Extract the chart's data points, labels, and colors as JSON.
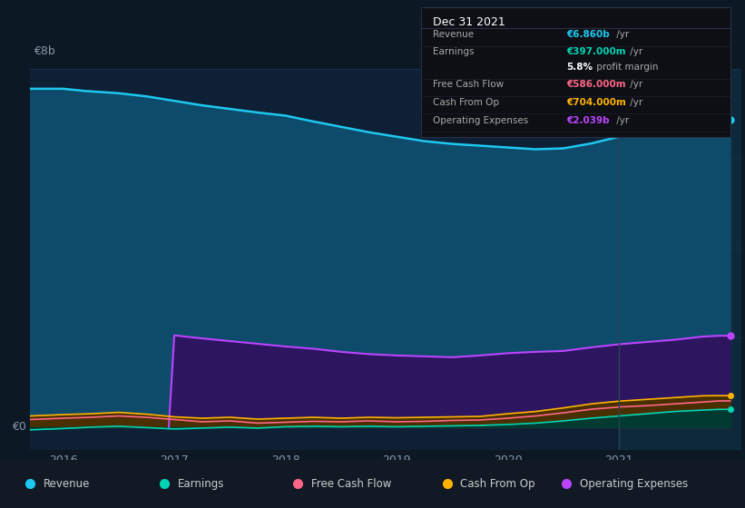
{
  "background_color": "#0c1824",
  "plot_bg_color": "#0d2035",
  "plot_bg_right": "#0e2a3a",
  "fig_width": 8.21,
  "fig_height": 5.6,
  "dpi": 100,
  "ylabel_top": "€8b",
  "ylabel_zero": "€0",
  "x_ticks": [
    2016,
    2017,
    2018,
    2019,
    2020,
    2021
  ],
  "ylim": [
    8.0,
    0.0
  ],
  "y_max": 8.0,
  "y_zero": 0.0,
  "xlim_min": 2015.7,
  "xlim_max": 2022.1,
  "vline_x": 2021.0,
  "revenue": {
    "label": "Revenue",
    "color": "#1ec8f0",
    "fill_color": "#0e4a6a",
    "data_x": [
      2015.7,
      2016.0,
      2016.2,
      2016.5,
      2016.75,
      2017.0,
      2017.25,
      2017.5,
      2017.75,
      2018.0,
      2018.25,
      2018.5,
      2018.75,
      2019.0,
      2019.25,
      2019.5,
      2019.75,
      2020.0,
      2020.25,
      2020.5,
      2020.75,
      2021.0,
      2021.1,
      2021.25,
      2021.5,
      2021.75,
      2021.9,
      2022.0
    ],
    "data_y": [
      7.55,
      7.55,
      7.5,
      7.45,
      7.38,
      7.28,
      7.18,
      7.1,
      7.02,
      6.95,
      6.82,
      6.7,
      6.58,
      6.48,
      6.38,
      6.32,
      6.28,
      6.24,
      6.2,
      6.22,
      6.33,
      6.48,
      6.55,
      6.62,
      6.72,
      6.8,
      6.86,
      6.86
    ]
  },
  "operating_expenses": {
    "label": "Operating Expenses",
    "color": "#bb44ff",
    "fill_color": "#2d1560",
    "data_x": [
      2016.95,
      2017.0,
      2017.1,
      2017.25,
      2017.5,
      2017.75,
      2018.0,
      2018.25,
      2018.5,
      2018.75,
      2019.0,
      2019.25,
      2019.5,
      2019.75,
      2020.0,
      2020.25,
      2020.5,
      2020.75,
      2021.0,
      2021.25,
      2021.5,
      2021.75,
      2021.9,
      2022.0
    ],
    "data_y": [
      0.0,
      2.05,
      2.02,
      1.98,
      1.92,
      1.86,
      1.8,
      1.75,
      1.68,
      1.63,
      1.6,
      1.58,
      1.56,
      1.6,
      1.65,
      1.68,
      1.7,
      1.78,
      1.85,
      1.9,
      1.95,
      2.02,
      2.039,
      2.039
    ]
  },
  "free_cash_flow": {
    "label": "Free Cash Flow",
    "color": "#ff6688",
    "fill_color": "#8b2040",
    "data_x": [
      2015.7,
      2016.0,
      2016.25,
      2016.5,
      2016.75,
      2017.0,
      2017.25,
      2017.5,
      2017.75,
      2018.0,
      2018.25,
      2018.5,
      2018.75,
      2019.0,
      2019.25,
      2019.5,
      2019.75,
      2020.0,
      2020.25,
      2020.5,
      2020.75,
      2021.0,
      2021.25,
      2021.5,
      2021.75,
      2021.9,
      2022.0
    ],
    "data_y": [
      0.17,
      0.2,
      0.22,
      0.25,
      0.22,
      0.17,
      0.12,
      0.14,
      0.09,
      0.11,
      0.13,
      0.12,
      0.14,
      0.12,
      0.13,
      0.15,
      0.16,
      0.2,
      0.25,
      0.32,
      0.4,
      0.45,
      0.48,
      0.52,
      0.56,
      0.586,
      0.586
    ]
  },
  "cash_from_op": {
    "label": "Cash From Op",
    "color": "#ffb300",
    "fill_color": "#4a3000",
    "data_x": [
      2015.7,
      2016.0,
      2016.25,
      2016.5,
      2016.75,
      2017.0,
      2017.25,
      2017.5,
      2017.75,
      2018.0,
      2018.25,
      2018.5,
      2018.75,
      2019.0,
      2019.25,
      2019.5,
      2019.75,
      2020.0,
      2020.25,
      2020.5,
      2020.75,
      2021.0,
      2021.25,
      2021.5,
      2021.75,
      2021.9,
      2022.0
    ],
    "data_y": [
      0.25,
      0.28,
      0.3,
      0.33,
      0.29,
      0.23,
      0.2,
      0.22,
      0.18,
      0.2,
      0.22,
      0.2,
      0.22,
      0.21,
      0.22,
      0.23,
      0.24,
      0.3,
      0.35,
      0.43,
      0.52,
      0.58,
      0.62,
      0.66,
      0.7,
      0.704,
      0.704
    ]
  },
  "earnings": {
    "label": "Earnings",
    "color": "#00d4b4",
    "fill_color": "#003a30",
    "data_x": [
      2015.7,
      2016.0,
      2016.25,
      2016.5,
      2016.75,
      2017.0,
      2017.25,
      2017.5,
      2017.75,
      2018.0,
      2018.25,
      2018.5,
      2018.75,
      2019.0,
      2019.25,
      2019.5,
      2019.75,
      2020.0,
      2020.25,
      2020.5,
      2020.75,
      2021.0,
      2021.25,
      2021.5,
      2021.75,
      2021.9,
      2022.0
    ],
    "data_y": [
      -0.06,
      -0.03,
      0.0,
      0.02,
      -0.01,
      -0.04,
      -0.02,
      0.0,
      -0.02,
      0.01,
      0.02,
      0.01,
      0.02,
      0.01,
      0.02,
      0.03,
      0.04,
      0.06,
      0.09,
      0.14,
      0.2,
      0.25,
      0.3,
      0.35,
      0.38,
      0.397,
      0.397
    ]
  },
  "tooltip": {
    "title": "Dec 31 2021",
    "rows": [
      {
        "label": "Revenue",
        "value": "€6.860b",
        "suffix": " /yr",
        "value_color": "#1ec8f0",
        "label_color": "#aaaaaa"
      },
      {
        "label": "Earnings",
        "value": "€397.000m",
        "suffix": " /yr",
        "value_color": "#00d4b4",
        "label_color": "#aaaaaa"
      },
      {
        "label": "",
        "value": "5.8%",
        "suffix": " profit margin",
        "value_color": "#ffffff",
        "label_color": "#aaaaaa"
      },
      {
        "label": "Free Cash Flow",
        "value": "€586.000m",
        "suffix": " /yr",
        "value_color": "#ff6688",
        "label_color": "#aaaaaa"
      },
      {
        "label": "Cash From Op",
        "value": "€704.000m",
        "suffix": " /yr",
        "value_color": "#ffb300",
        "label_color": "#aaaaaa"
      },
      {
        "label": "Operating Expenses",
        "value": "€2.039b",
        "suffix": " /yr",
        "value_color": "#bb44ff",
        "label_color": "#aaaaaa"
      }
    ]
  },
  "legend_items": [
    {
      "label": "Revenue",
      "color": "#1ec8f0"
    },
    {
      "label": "Earnings",
      "color": "#00d4b4"
    },
    {
      "label": "Free Cash Flow",
      "color": "#ff6688"
    },
    {
      "label": "Cash From Op",
      "color": "#ffb300"
    },
    {
      "label": "Operating Expenses",
      "color": "#bb44ff"
    }
  ],
  "grid_color": "#1a3348",
  "tick_color": "#8899aa",
  "label_fontsize": 9,
  "legend_fontsize": 8.5
}
